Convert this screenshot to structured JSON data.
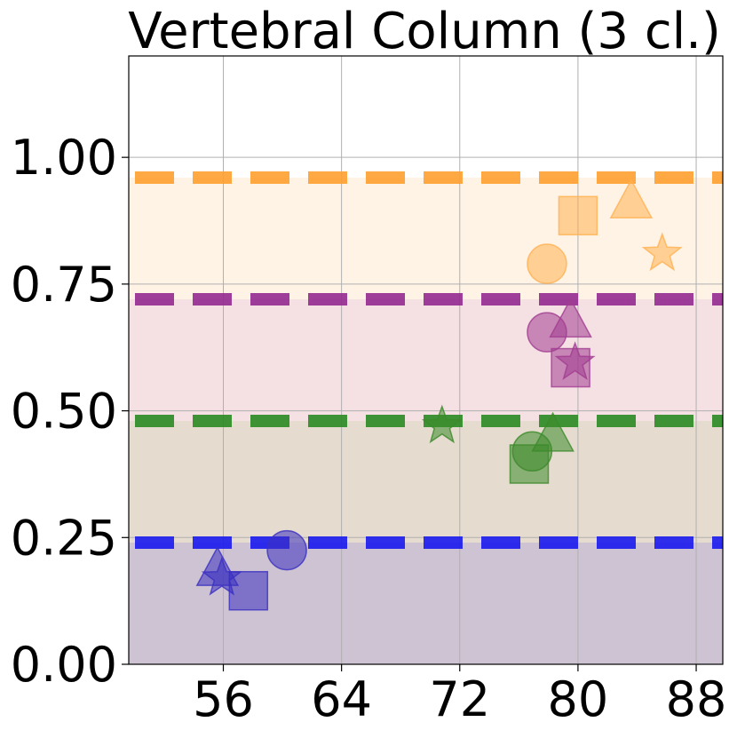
{
  "chart_data": {
    "type": "scatter",
    "title": "Vertebral Column (3 cl.)",
    "xlabel": "",
    "ylabel": "",
    "xlim": [
      49.6,
      89.8
    ],
    "ylim": [
      0,
      1.2
    ],
    "grid": true,
    "xticks": [
      56,
      64,
      72,
      80,
      88
    ],
    "xtick_labels": [
      "56",
      "64",
      "72",
      "80",
      "88"
    ],
    "yticks": [
      0,
      0.25,
      0.5,
      0.75,
      1.0
    ],
    "ytick_labels": [
      "0.00",
      "0.25",
      "0.50",
      "0.75",
      "1.00"
    ],
    "bands": [
      {
        "y0": 0.0,
        "y1": 0.24,
        "color": "#8B6F94"
      },
      {
        "y0": 0.24,
        "y1": 0.48,
        "color": "#C0A98C"
      },
      {
        "y0": 0.48,
        "y1": 0.72,
        "color": "#E8B4BE"
      },
      {
        "y0": 0.72,
        "y1": 0.96,
        "color": "#FFE2C4"
      }
    ],
    "threshold_lines": [
      {
        "y": 0.24,
        "color": "#1a1aee"
      },
      {
        "y": 0.48,
        "color": "#2a8a22"
      },
      {
        "y": 0.72,
        "color": "#932a8f"
      },
      {
        "y": 0.96,
        "color": "#ffa030"
      }
    ],
    "series": [
      {
        "color": "#3a30c0",
        "points": [
          {
            "x": 55.6,
            "y": 0.19,
            "marker": "triangle"
          },
          {
            "x": 55.9,
            "y": 0.17,
            "marker": "star"
          },
          {
            "x": 57.7,
            "y": 0.145,
            "marker": "square"
          },
          {
            "x": 60.3,
            "y": 0.225,
            "marker": "circle"
          }
        ]
      },
      {
        "color": "#3c8a2a",
        "points": [
          {
            "x": 70.8,
            "y": 0.47,
            "marker": "star"
          },
          {
            "x": 76.7,
            "y": 0.395,
            "marker": "square"
          },
          {
            "x": 76.9,
            "y": 0.42,
            "marker": "circle"
          },
          {
            "x": 78.3,
            "y": 0.455,
            "marker": "triangle"
          }
        ]
      },
      {
        "color": "#a03c90",
        "points": [
          {
            "x": 77.9,
            "y": 0.655,
            "marker": "circle"
          },
          {
            "x": 79.5,
            "y": 0.585,
            "marker": "square"
          },
          {
            "x": 79.8,
            "y": 0.595,
            "marker": "star"
          },
          {
            "x": 79.5,
            "y": 0.68,
            "marker": "triangle"
          }
        ]
      },
      {
        "color": "#ffb050",
        "points": [
          {
            "x": 77.9,
            "y": 0.79,
            "marker": "circle"
          },
          {
            "x": 80.0,
            "y": 0.885,
            "marker": "square"
          },
          {
            "x": 83.6,
            "y": 0.915,
            "marker": "triangle"
          },
          {
            "x": 85.7,
            "y": 0.81,
            "marker": "star"
          }
        ]
      }
    ]
  }
}
